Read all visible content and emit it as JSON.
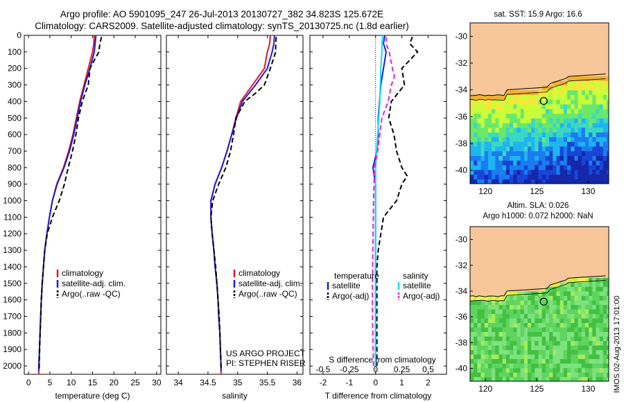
{
  "title": {
    "line1": "Argo profile: AO 5901095_247 26-Jul-2013 20130727_382 34.823S 125.672E",
    "line2": "Climatology: CARS2009. Satellite-adjusted climatology: synTS_20130725.nc (1.8d earlier)"
  },
  "side_label": "IMOS 02-Aug-2013 17:01:00",
  "colors": {
    "climatology": "#e8141e",
    "satellite": "#1a1adc",
    "argo": "#000000",
    "temp_diff_sat": "#1a1adc",
    "sal_diff_sat": "#00e1ff",
    "sal_diff_argo": "#e81ee8",
    "land": "#f7c79a"
  },
  "chart_data": [
    {
      "type": "line",
      "panel": "temperature",
      "xlabel": "temperature (deg C)",
      "ylabel": "",
      "xlim": [
        -1,
        31
      ],
      "ylim": [
        2050,
        0
      ],
      "xticks": [
        0,
        5,
        10,
        15,
        20,
        25,
        30
      ],
      "yticks": [
        0,
        100,
        200,
        300,
        400,
        500,
        600,
        700,
        800,
        900,
        1000,
        1100,
        1200,
        1300,
        1400,
        1500,
        1600,
        1700,
        1800,
        1900,
        2000
      ],
      "legend": [
        "climatology",
        "satellite-adj. clim.",
        "Argo(..raw -QC)"
      ],
      "series": [
        {
          "name": "climatology",
          "style": "solid",
          "points": [
            [
              15.4,
              0
            ],
            [
              15.3,
              50
            ],
            [
              15.0,
              100
            ],
            [
              14.0,
              200
            ],
            [
              13.0,
              300
            ],
            [
              12.0,
              400
            ],
            [
              11.2,
              500
            ],
            [
              10.4,
              600
            ],
            [
              9.4,
              700
            ],
            [
              8.2,
              800
            ],
            [
              6.6,
              900
            ],
            [
              5.6,
              1000
            ],
            [
              4.9,
              1100
            ],
            [
              4.3,
              1200
            ],
            [
              3.8,
              1300
            ],
            [
              3.5,
              1400
            ],
            [
              3.2,
              1500
            ],
            [
              3.0,
              1600
            ],
            [
              2.85,
              1700
            ],
            [
              2.7,
              1800
            ],
            [
              2.55,
              1900
            ],
            [
              2.45,
              2000
            ],
            [
              2.4,
              2050
            ]
          ]
        },
        {
          "name": "satellite-adj. clim.",
          "style": "solid",
          "points": [
            [
              15.8,
              0
            ],
            [
              15.6,
              50
            ],
            [
              15.4,
              100
            ],
            [
              14.4,
              200
            ],
            [
              13.2,
              300
            ],
            [
              12.2,
              400
            ],
            [
              11.4,
              500
            ],
            [
              10.6,
              600
            ],
            [
              9.6,
              700
            ],
            [
              8.3,
              800
            ],
            [
              6.7,
              900
            ],
            [
              5.6,
              1000
            ],
            [
              4.9,
              1100
            ],
            [
              4.3,
              1200
            ],
            [
              3.8,
              1300
            ],
            [
              3.5,
              1400
            ],
            [
              3.2,
              1500
            ],
            [
              3.0,
              1600
            ],
            [
              2.85,
              1700
            ],
            [
              2.7,
              1800
            ],
            [
              2.55,
              1900
            ],
            [
              2.4,
              2000
            ],
            [
              2.4,
              2030
            ]
          ]
        },
        {
          "name": "Argo(..raw -QC)",
          "style": "dashed",
          "points": [
            [
              17.1,
              10
            ],
            [
              16.7,
              50
            ],
            [
              16.5,
              100
            ],
            [
              15.4,
              150
            ],
            [
              14.4,
              200
            ],
            [
              14.0,
              300
            ],
            [
              12.6,
              400
            ],
            [
              11.7,
              500
            ],
            [
              11.1,
              600
            ],
            [
              10.3,
              700
            ],
            [
              9.3,
              800
            ],
            [
              8.4,
              900
            ],
            [
              7.2,
              1000
            ],
            [
              5.6,
              1100
            ],
            [
              4.4,
              1200
            ],
            [
              3.8,
              1300
            ],
            [
              3.5,
              1400
            ],
            [
              3.2,
              1500
            ],
            [
              3.0,
              1600
            ],
            [
              2.85,
              1700
            ],
            [
              2.7,
              1800
            ],
            [
              2.6,
              1900
            ],
            [
              2.5,
              2000
            ],
            [
              2.5,
              2020
            ]
          ]
        }
      ]
    },
    {
      "type": "line",
      "panel": "salinity",
      "xlabel": "salinity",
      "xlim": [
        33.8,
        36.1
      ],
      "ylim": [
        2050,
        0
      ],
      "xticks": [
        34,
        34.5,
        35,
        35.5,
        36
      ],
      "xticklabels": [
        "34",
        "34.5",
        "35",
        "35.5",
        "36"
      ],
      "legend": [
        "climatology",
        "satellite-adj. clim.",
        "Argo(..raw -QC)"
      ],
      "annotation": [
        "US ARGO PROJECT",
        "PI: STEPHEN RISER"
      ],
      "series": [
        {
          "name": "climatology",
          "style": "solid",
          "points": [
            [
              35.55,
              0
            ],
            [
              35.54,
              50
            ],
            [
              35.5,
              100
            ],
            [
              35.45,
              200
            ],
            [
              35.25,
              300
            ],
            [
              35.05,
              400
            ],
            [
              34.97,
              500
            ],
            [
              34.9,
              600
            ],
            [
              34.82,
              700
            ],
            [
              34.73,
              800
            ],
            [
              34.62,
              900
            ],
            [
              34.55,
              1000
            ],
            [
              34.55,
              1100
            ],
            [
              34.57,
              1200
            ],
            [
              34.6,
              1300
            ],
            [
              34.62,
              1400
            ],
            [
              34.65,
              1500
            ],
            [
              34.67,
              1600
            ],
            [
              34.68,
              1700
            ],
            [
              34.7,
              1800
            ],
            [
              34.71,
              1900
            ],
            [
              34.72,
              2000
            ],
            [
              34.72,
              2050
            ]
          ]
        },
        {
          "name": "satellite-adj. clim.",
          "style": "solid",
          "points": [
            [
              35.62,
              0
            ],
            [
              35.61,
              50
            ],
            [
              35.58,
              100
            ],
            [
              35.5,
              200
            ],
            [
              35.3,
              300
            ],
            [
              35.08,
              400
            ],
            [
              34.98,
              500
            ],
            [
              34.9,
              600
            ],
            [
              34.82,
              700
            ],
            [
              34.73,
              800
            ],
            [
              34.62,
              900
            ],
            [
              34.55,
              1000
            ],
            [
              34.55,
              1100
            ],
            [
              34.57,
              1200
            ],
            [
              34.6,
              1300
            ],
            [
              34.62,
              1400
            ],
            [
              34.65,
              1500
            ],
            [
              34.67,
              1600
            ],
            [
              34.68,
              1700
            ],
            [
              34.7,
              1800
            ],
            [
              34.71,
              1900
            ],
            [
              34.72,
              2000
            ],
            [
              34.72,
              2030
            ]
          ]
        },
        {
          "name": "Argo(..raw -QC)",
          "style": "dashed",
          "points": [
            [
              35.65,
              10
            ],
            [
              35.64,
              50
            ],
            [
              35.64,
              100
            ],
            [
              35.55,
              200
            ],
            [
              35.45,
              300
            ],
            [
              35.3,
              350
            ],
            [
              35.12,
              400
            ],
            [
              34.97,
              500
            ],
            [
              34.93,
              600
            ],
            [
              34.88,
              700
            ],
            [
              34.8,
              800
            ],
            [
              34.68,
              900
            ],
            [
              34.58,
              1000
            ],
            [
              34.55,
              1100
            ],
            [
              34.57,
              1200
            ],
            [
              34.6,
              1300
            ],
            [
              34.63,
              1400
            ],
            [
              34.65,
              1500
            ],
            [
              34.67,
              1600
            ],
            [
              34.69,
              1700
            ],
            [
              34.7,
              1800
            ],
            [
              34.71,
              1900
            ],
            [
              34.72,
              2000
            ],
            [
              34.72,
              2020
            ]
          ]
        }
      ]
    },
    {
      "type": "line",
      "panel": "differences",
      "xlabel": "T difference from climatology",
      "xlabel_top": "S difference from climatology",
      "xlim": [
        -2.5,
        2.7
      ],
      "ylim": [
        2050,
        0
      ],
      "xticks": [
        -2,
        -1,
        0,
        1,
        2
      ],
      "xticklabels": [
        "-2",
        "-1",
        "0",
        "1",
        "2"
      ],
      "sal_xticks": [
        -0.5,
        -0.25,
        0,
        0.25,
        0.5
      ],
      "sal_xticklabels": [
        "-0.5",
        "-0.25",
        "0",
        "0.25",
        "0.5"
      ],
      "legend_headers": [
        "temperature",
        "salinity"
      ],
      "legend": [
        "satellite",
        "Argo(-adj)",
        "satellite",
        "Argo(-adj)"
      ],
      "series": [
        {
          "name": "satellite",
          "quantity": "temperature",
          "style": "solid",
          "points": [
            [
              0.35,
              0
            ],
            [
              0.3,
              50
            ],
            [
              0.4,
              100
            ],
            [
              0.3,
              200
            ],
            [
              0.2,
              300
            ],
            [
              0.15,
              400
            ],
            [
              0.1,
              500
            ],
            [
              0.1,
              600
            ],
            [
              0.05,
              700
            ],
            [
              -0.1,
              800
            ],
            [
              0,
              900
            ],
            [
              0,
              1000
            ],
            [
              0,
              1100
            ],
            [
              0,
              2000
            ]
          ]
        },
        {
          "name": "Argo(-adj)",
          "quantity": "temperature",
          "style": "dashed",
          "points": [
            [
              1.4,
              10
            ],
            [
              1.3,
              50
            ],
            [
              1.6,
              100
            ],
            [
              1.0,
              200
            ],
            [
              1.1,
              300
            ],
            [
              0.6,
              400
            ],
            [
              0.5,
              500
            ],
            [
              0.7,
              600
            ],
            [
              0.8,
              700
            ],
            [
              1.0,
              800
            ],
            [
              1.2,
              850
            ],
            [
              1.0,
              900
            ],
            [
              0.8,
              1000
            ],
            [
              0.3,
              1100
            ],
            [
              0.2,
              1200
            ],
            [
              0.1,
              1300
            ],
            [
              0.05,
              1400
            ],
            [
              0.05,
              1500
            ],
            [
              0.05,
              1700
            ],
            [
              0.05,
              2000
            ]
          ]
        },
        {
          "name": "satellite",
          "quantity": "salinity",
          "style": "solid",
          "points": [
            [
              0.07,
              0
            ],
            [
              0.06,
              50
            ],
            [
              0.06,
              100
            ],
            [
              0.05,
              200
            ],
            [
              0.04,
              400
            ],
            [
              0.02,
              600
            ],
            [
              0,
              800
            ],
            [
              0,
              1000
            ],
            [
              0,
              2000
            ]
          ]
        },
        {
          "name": "Argo(-adj)",
          "quantity": "salinity",
          "style": "dashed",
          "points": [
            [
              0.1,
              10
            ],
            [
              0.1,
              50
            ],
            [
              0.13,
              100
            ],
            [
              0.16,
              200
            ],
            [
              0.18,
              250
            ],
            [
              0.15,
              300
            ],
            [
              0.12,
              400
            ],
            [
              0.06,
              500
            ],
            [
              0.02,
              700
            ],
            [
              -0.01,
              800
            ],
            [
              -0.02,
              1000
            ],
            [
              -0.03,
              1500
            ],
            [
              -0.03,
              1700
            ],
            [
              -0.02,
              2000
            ]
          ]
        }
      ]
    },
    {
      "type": "heatmap",
      "panel": "map-sst",
      "title": "sat. SST: 15.9 Argo: 16.6",
      "xlim": [
        118.5,
        132
      ],
      "ylim": [
        -41,
        -29
      ],
      "xticks": [
        120,
        125,
        130
      ],
      "yticks": [
        -30,
        -32,
        -34,
        -36,
        -38,
        -40
      ],
      "argo_position": [
        125.672,
        -34.823
      ]
    },
    {
      "type": "heatmap",
      "panel": "map-sla",
      "title_lines": [
        "Altim. SLA: 0.026",
        "Argo h1000: 0.072 h2000: NaN"
      ],
      "xlim": [
        118.5,
        132
      ],
      "ylim": [
        -41,
        -29
      ],
      "xticks": [
        120,
        125,
        130
      ],
      "yticks": [
        -30,
        -32,
        -34,
        -36,
        -38,
        -40
      ],
      "argo_position": [
        125.672,
        -34.823
      ]
    }
  ]
}
